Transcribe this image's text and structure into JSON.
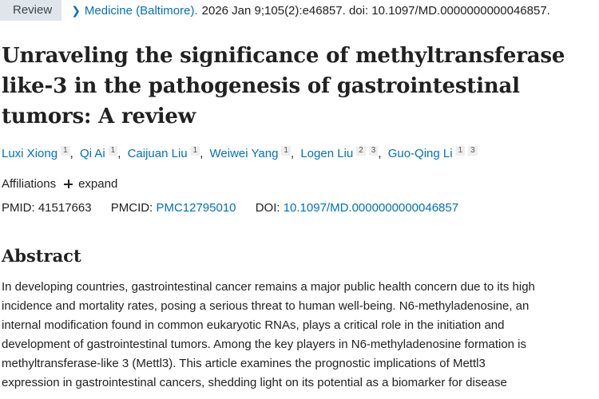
{
  "topline": {
    "badge": "Review",
    "journal": "Medicine (Baltimore).",
    "citation": "2026 Jan 9;105(2):e46857. doi: 10.1097/MD.0000000000046857."
  },
  "title": "Unraveling the significance of methyltransferase like-3 in the pathogenesis of gastrointestinal tumors: A review",
  "authors": [
    {
      "name": "Luxi Xiong",
      "affs": [
        "1"
      ]
    },
    {
      "name": "Qi Ai",
      "affs": [
        "1"
      ]
    },
    {
      "name": "Caijuan Liu",
      "affs": [
        "1"
      ]
    },
    {
      "name": "Weiwei Yang",
      "affs": [
        "1"
      ]
    },
    {
      "name": "Logen Liu",
      "affs": [
        "2",
        "3"
      ]
    },
    {
      "name": "Guo-Qing Li",
      "affs": [
        "1",
        "3"
      ]
    }
  ],
  "affiliations": {
    "label": "Affiliations",
    "expand": "expand"
  },
  "ids": {
    "pmid_label": "PMID:",
    "pmid": "41517663",
    "pmcid_label": "PMCID:",
    "pmcid": "PMC12795010",
    "doi_label": "DOI:",
    "doi": "10.1097/MD.0000000000046857"
  },
  "abstract": {
    "heading": "Abstract",
    "lines": [
      "In developing countries, gastrointestinal cancer remains a major public health concern due to its high",
      "incidence and mortality rates, posing a serious threat to human well-being. N6-methyladenosine, an",
      "internal modification found in common eukaryotic RNAs, plays a critical role in the initiation and",
      "development of gastrointestinal tumors. Among the key players in N6-methyladenosine formation is",
      "methyltransferase-like 3 (Mettl3). This article examines the prognostic implications of Mettl3",
      "expression in gastrointestinal cancers, shedding light on its potential as a biomarker for disease"
    ]
  },
  "colors": {
    "link": "#0071bc",
    "text": "#212121",
    "badge_bg": "#dfe5ea"
  }
}
